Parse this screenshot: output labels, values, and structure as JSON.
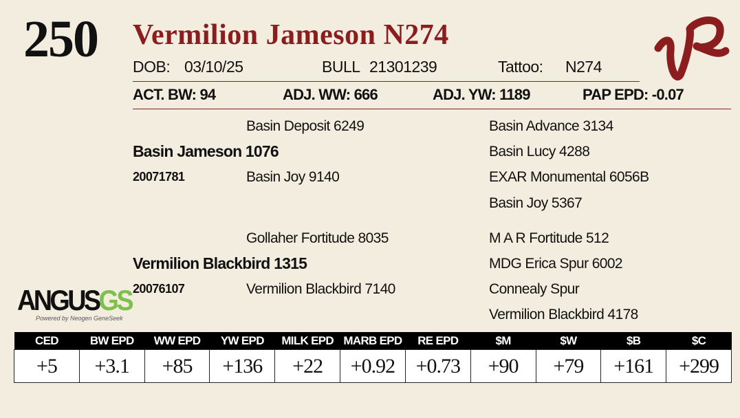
{
  "lot": "250",
  "name": "Vermilion Jameson N274",
  "info": {
    "dob_label": "DOB:",
    "dob": "03/10/25",
    "sex": "BULL",
    "registration": "21301239",
    "tattoo_label": "Tattoo:",
    "tattoo": "N274"
  },
  "stats": [
    "ACT. BW: 94",
    "ADJ. WW: 666",
    "ADJ. YW: 1189",
    "PAP EPD: -0.07"
  ],
  "pedigree": {
    "sire": {
      "name": "Basin Jameson 1076",
      "registration": "20071781",
      "sire": "Basin Deposit 6249",
      "dam": "Basin Joy 9140",
      "grandparents": [
        "Basin Advance 3134",
        "Basin Lucy 4288",
        "EXAR Monumental 6056B",
        "Basin Joy 5367"
      ]
    },
    "dam": {
      "name": "Vermilion Blackbird 1315",
      "registration": "20076107",
      "sire": "Gollaher Fortitude 8035",
      "dam": "Vermilion Blackbird 7140",
      "grandparents": [
        "M A R Fortitude 512",
        "MDG Erica Spur 6002",
        "Connealy Spur",
        "Vermilion Blackbird 4178"
      ]
    }
  },
  "logo": {
    "main": "ANGUS",
    "suffix": "GS",
    "tagline": "Powered by Neogen GeneSeek"
  },
  "epd_table": {
    "headers": [
      "CED",
      "BW EPD",
      "WW EPD",
      "YW EPD",
      "MILK EPD",
      "MARB EPD",
      "RE EPD",
      "$M",
      "$W",
      "$B",
      "$C"
    ],
    "values": [
      "+5",
      "+3.1",
      "+85",
      "+136",
      "+22",
      "+0.92",
      "+0.73",
      "+90",
      "+79",
      "+161",
      "+299"
    ]
  }
}
